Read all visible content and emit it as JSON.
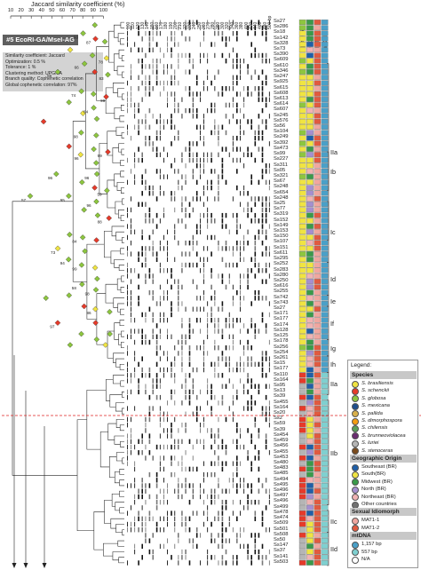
{
  "axis": {
    "title": "Jaccard similarity coefficient (%)",
    "ticks": [
      10,
      20,
      30,
      40,
      50,
      60,
      70,
      80,
      90,
      100
    ]
  },
  "panel_title": "#5 EcoRI-GA/MseI-AG",
  "settings": [
    "Similarity coefficient: Jaccard",
    "Optimization: 0.5 %",
    "Tolerance: 1 %",
    "Clustering method: UPGMA",
    "Branch quality: Cophenetic correlation",
    "Global cophenetic correlation: 97%"
  ],
  "bp_scale": [
    "100",
    "110",
    "120",
    "130",
    "140",
    "150",
    "160",
    "170",
    "180",
    "190",
    "200",
    "210",
    "220",
    "230",
    "240",
    "250",
    "260",
    "270",
    "280",
    "290",
    "300",
    "320",
    "340",
    "360",
    "380",
    "400",
    "420",
    "440",
    "460",
    "480",
    "500 bp"
  ],
  "columns": [
    "Species",
    "Origin",
    "MAT",
    "mtDNA"
  ],
  "isolates": [
    "Ss27",
    "Ss286",
    "Ss18",
    "Ss142",
    "Ss328",
    "Ss73",
    "Ss390",
    "Ss609",
    "Ss610",
    "Ss346",
    "Ss247",
    "Ss925",
    "Ss615",
    "Ss608",
    "Ss613",
    "Ss614",
    "Ss607",
    "Ss245",
    "Ss576",
    "Ss56",
    "Ss104",
    "Ss249",
    "Ss392",
    "Ss473",
    "Ss99",
    "Ss227",
    "Ss311",
    "Ss05",
    "Ss321",
    "Ss67",
    "Ss248",
    "Ss654",
    "Ss248",
    "Ss25",
    "Ss77",
    "Ss319",
    "Ss152",
    "Ss149",
    "Ss153",
    "Ss150",
    "Ss107",
    "Ss151",
    "Ss611",
    "Ss295",
    "Ss252",
    "Ss283",
    "Ss280",
    "Ss250",
    "Ss616",
    "Ss255",
    "Ss742",
    "Ss743",
    "Ss27",
    "Ss171",
    "Ss177",
    "Ss174",
    "Ss128",
    "Ss125",
    "Ss178",
    "Ss256",
    "Ss254",
    "Ss261",
    "Ss15",
    "Ss177",
    "Ss110",
    "Ss164",
    "Ss95",
    "Ss13",
    "Ss39",
    "Ss455",
    "Ss164",
    "Ss20",
    "Ss2",
    "Ss59",
    "Ss39",
    "Ss454",
    "Ss459",
    "Ss456",
    "Ss455",
    "Ss453",
    "Ss480",
    "Ss483",
    "Ss485",
    "Ss494",
    "Ss495",
    "Ss496",
    "Ss497",
    "Ss496",
    "Ss499",
    "Ss478",
    "Ss474",
    "Ss509",
    "Ss501",
    "Ss508",
    "Ss50",
    "Ss147",
    "Ss37",
    "Ss141",
    "Ss503"
  ],
  "clades": [
    "IIa",
    "Ib",
    "Ic",
    "Id",
    "Ie",
    "If",
    "Ig",
    "Ih",
    "IIa",
    "IIb",
    "IIc",
    "IId"
  ],
  "legend": {
    "title": "Legend:",
    "species_header": "Species",
    "species": [
      {
        "label": "S. brasiliensis",
        "color": "#f0e442"
      },
      {
        "label": "S. schenckii",
        "color": "#e63a2a"
      },
      {
        "label": "S. globosa",
        "color": "#8dc63f"
      },
      {
        "label": "S. mexicana",
        "color": "#1f4e8c"
      },
      {
        "label": "S. pallida",
        "color": "#d8b04a"
      },
      {
        "label": "S. dimorphospora",
        "color": "#f39c12"
      },
      {
        "label": "S. chilensis",
        "color": "#5aa05a"
      },
      {
        "label": "S. brunneoviolacea",
        "color": "#6a2c70"
      },
      {
        "label": "S. luriei",
        "color": "#b5b5b5"
      },
      {
        "label": "S. stenoceras",
        "color": "#7a4a1c"
      }
    ],
    "origin_header": "Geographic Origin",
    "origins": [
      {
        "label": "Southeast (BR)",
        "color": "#1f5fa8"
      },
      {
        "label": "South(BR)",
        "color": "#f0e442"
      },
      {
        "label": "Midwest (BR)",
        "color": "#3a9a4a"
      },
      {
        "label": "North (BR)",
        "color": "#a58fd0"
      },
      {
        "label": "Northeast (BR)",
        "color": "#f0b3b3"
      },
      {
        "label": "Other countries",
        "color": "#707070"
      }
    ],
    "mat_header": "Sexual Idiomorph",
    "mats": [
      {
        "label": "MAT1-1",
        "color": "#f0a7a0"
      },
      {
        "label": "MAT1-2",
        "color": "#e05a40"
      }
    ],
    "mtdna_header": "mtDNA",
    "mtdna": [
      {
        "label": "1,157 bp",
        "color": "#4aa0c8"
      },
      {
        "label": "557 bp",
        "color": "#7fd0d0"
      },
      {
        "label": "N/A",
        "color": "#ffffff"
      }
    ]
  },
  "bootstrap_samples": [
    "57",
    "66",
    "93",
    "87",
    "66",
    "78",
    "83",
    "74",
    "99",
    "64",
    "96",
    "98",
    "96",
    "99",
    "95",
    "96",
    "59",
    "96",
    "88",
    "73",
    "84",
    "94",
    "99",
    "97",
    "58",
    "98",
    "86"
  ]
}
